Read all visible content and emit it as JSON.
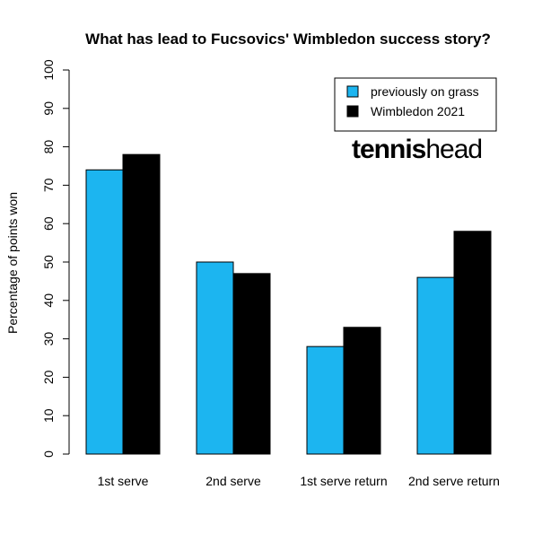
{
  "chart_data": {
    "type": "bar",
    "title": "What has lead to Fucsovics' Wimbledon success story?",
    "ylabel": "Percentage of points won",
    "xlabel": "",
    "categories": [
      "1st serve",
      "2nd serve",
      "1st serve return",
      "2nd serve return"
    ],
    "series": [
      {
        "name": "previously on grass",
        "color": "#1cb5f0",
        "values": [
          74,
          50,
          28,
          46
        ]
      },
      {
        "name": "Wimbledon 2021",
        "color": "#000000",
        "values": [
          78,
          47,
          33,
          58
        ]
      }
    ],
    "ylim": [
      0,
      100
    ],
    "yticks": [
      0,
      10,
      20,
      30,
      40,
      50,
      60,
      70,
      80,
      90,
      100
    ],
    "grid": false,
    "legend_position": "top-right"
  },
  "logo": {
    "text_bold": "tennis",
    "text_light": "head"
  }
}
